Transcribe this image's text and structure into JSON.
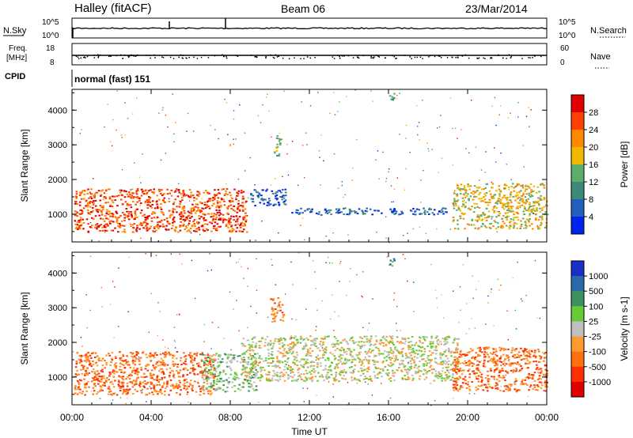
{
  "header": {
    "station": "Halley (fitACF)",
    "beam": "Beam 06",
    "date": "23/Mar/2014"
  },
  "strip_labels": {
    "nsky": "N.Sky",
    "nsky_top": "10^5",
    "nsky_bottom": "10^0",
    "nsearch": "N.Search",
    "nsearch_top": "10^5",
    "nsearch_bottom": "10^0",
    "freq_line1": "Freq.",
    "freq_line2": "[MHz]",
    "freq_top": "18",
    "freq_bottom": "8",
    "nave": "Nave",
    "nave_top": "60",
    "nave_bottom": "0",
    "cpid": "CPID",
    "cpid_value": "normal (fast) 151"
  },
  "chart_data": [
    {
      "type": "heatmap",
      "ylabel": "Slant Range [km]",
      "xlabel": "Time UT",
      "xlim": [
        0,
        24
      ],
      "ylim": [
        200,
        4600
      ],
      "x_ticks": [
        "00:00",
        "04:00",
        "08:00",
        "12:00",
        "16:00",
        "20:00",
        "00:00"
      ],
      "y_ticks": [
        1000,
        2000,
        3000,
        4000
      ],
      "colorbar": {
        "label": "Power [dB]",
        "ticks": [
          "4",
          "8",
          "12",
          "16",
          "20",
          "24",
          "28"
        ],
        "colors": [
          "#0022ee",
          "#225fbf",
          "#3e8a78",
          "#5cae6a",
          "#f0b800",
          "#ff8800",
          "#ff4000",
          "#e00000"
        ]
      },
      "regions": [
        {
          "t0": 0.1,
          "t1": 8.8,
          "r0": 500,
          "r1": 1750,
          "level": 6
        },
        {
          "t0": 9.0,
          "t1": 10.8,
          "r0": 1250,
          "r1": 1750,
          "level": 1
        },
        {
          "t0": 10.2,
          "t1": 10.6,
          "r0": 2700,
          "r1": 3300,
          "level": 3
        },
        {
          "t0": 11.0,
          "t1": 19.0,
          "r0": 1000,
          "r1": 1200,
          "level": 1
        },
        {
          "t0": 16.0,
          "t1": 16.3,
          "r0": 4200,
          "r1": 4500,
          "level": 2
        },
        {
          "t0": 19.2,
          "t1": 24.0,
          "r0": 600,
          "r1": 1900,
          "level": 4
        }
      ]
    },
    {
      "type": "heatmap",
      "ylabel": "Slant Range [km]",
      "xlabel": "Time UT",
      "xlim": [
        0,
        24
      ],
      "ylim": [
        200,
        4600
      ],
      "x_ticks": [
        "00:00",
        "04:00",
        "08:00",
        "12:00",
        "16:00",
        "20:00",
        "00:00"
      ],
      "y_ticks": [
        1000,
        2000,
        3000,
        4000
      ],
      "colorbar": {
        "label": "Velocity [m s-1]",
        "ticks": [
          "1000",
          "500",
          "100",
          "25",
          "-25",
          "-100",
          "-500",
          "-1000"
        ],
        "colors": [
          "#1830c8",
          "#2a6aa8",
          "#3f9060",
          "#66cc33",
          "#bfbfbf",
          "#ff9a30",
          "#ff7010",
          "#ff3000",
          "#e00000"
        ]
      },
      "regions": [
        {
          "t0": 0.1,
          "t1": 7.2,
          "r0": 500,
          "r1": 1750,
          "level": 6
        },
        {
          "t0": 6.5,
          "t1": 9.3,
          "r0": 600,
          "r1": 1700,
          "level": 3
        },
        {
          "t0": 8.5,
          "t1": 19.5,
          "r0": 900,
          "r1": 2200,
          "level": 4
        },
        {
          "t0": 10.0,
          "t1": 10.7,
          "r0": 2600,
          "r1": 3300,
          "level": 6
        },
        {
          "t0": 16.0,
          "t1": 16.3,
          "r0": 4200,
          "r1": 4500,
          "level": 2
        },
        {
          "t0": 19.2,
          "t1": 24.0,
          "r0": 600,
          "r1": 1900,
          "level": 6
        }
      ]
    }
  ]
}
